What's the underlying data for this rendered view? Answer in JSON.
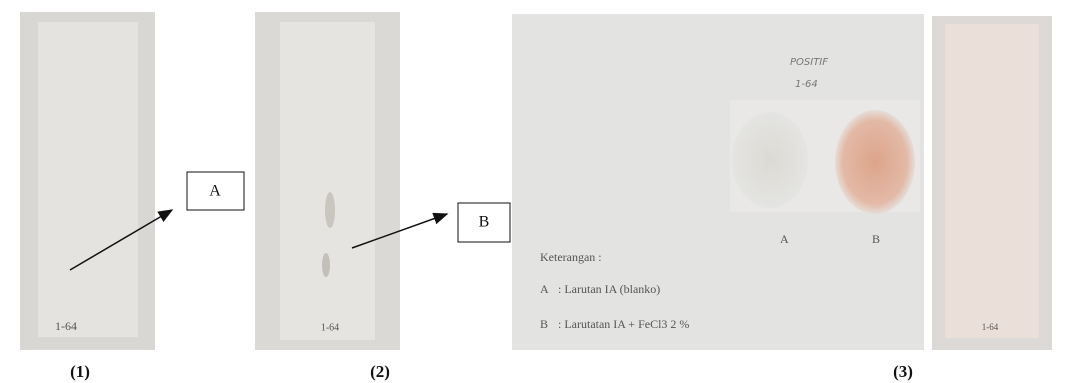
{
  "panels": [
    {
      "plate_label": "1-64",
      "caption": "(1)"
    },
    {
      "plate_label": "1-64",
      "caption": "(2)"
    },
    {
      "handwriting": [
        "POSITIF",
        "1-64"
      ],
      "spot_labels": [
        "A",
        "B"
      ],
      "legend_title": "Keterangan :",
      "legend": [
        [
          "A",
          ": Larutan IA (blanko)"
        ],
        [
          "B",
          ": Larutatan IA + FeCl3 2 %"
        ]
      ],
      "caption": "(3)"
    },
    {
      "plate_label": "1-64"
    }
  ],
  "boxes": [
    "A",
    "B"
  ]
}
